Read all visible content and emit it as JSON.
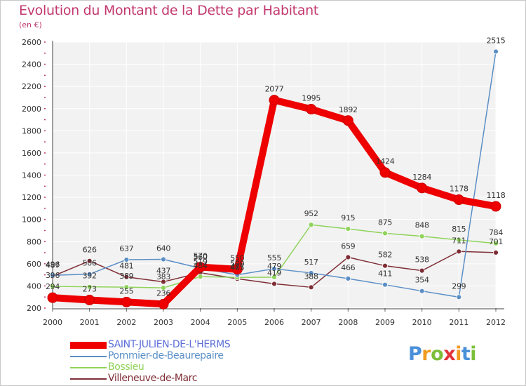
{
  "title": "Evolution du Montant de la Dette par Habitant",
  "unit_label": "(en €)",
  "logo": [
    "P",
    "r",
    "o",
    "x",
    "i",
    "t",
    "i"
  ],
  "chart_data": {
    "type": "line",
    "title": "Evolution du Montant de la Dette par Habitant",
    "ylabel": "(en €)",
    "x": [
      "2000",
      "2001",
      "2002",
      "2003",
      "2004",
      "2005",
      "2006",
      "2007",
      "2008",
      "2009",
      "2010",
      "2011",
      "2012"
    ],
    "ylim": [
      200,
      2600
    ],
    "yticks": [
      200,
      400,
      600,
      800,
      1000,
      1200,
      1400,
      1600,
      1800,
      2000,
      2200,
      2400,
      2600
    ],
    "grid": true,
    "legend_position": "bottom-left",
    "series": [
      {
        "name": "SAINT-JULIEN-DE-L'HERMS",
        "color": "#ee0000",
        "values": [
          294,
          273,
          255,
          236,
          570,
          550,
          2077,
          1995,
          1892,
          1424,
          1284,
          1178,
          1118
        ]
      },
      {
        "name": "Pommier-de-Beaurepaire",
        "color": "#5b8fc6",
        "values": [
          496,
          506,
          637,
          640,
          560,
          500,
          555,
          517,
          466,
          411,
          354,
          299,
          2515
        ]
      },
      {
        "name": "Bossieu",
        "color": "#8fd35a",
        "values": [
          396,
          392,
          389,
          383,
          484,
          477,
          479,
          952,
          915,
          875,
          848,
          815,
          784
        ]
      },
      {
        "name": "Villeneuve-de-Marc",
        "color": "#7f2e36",
        "values": [
          487,
          626,
          481,
          437,
          519,
          465,
          419,
          388,
          659,
          582,
          538,
          711,
          701
        ]
      }
    ]
  }
}
